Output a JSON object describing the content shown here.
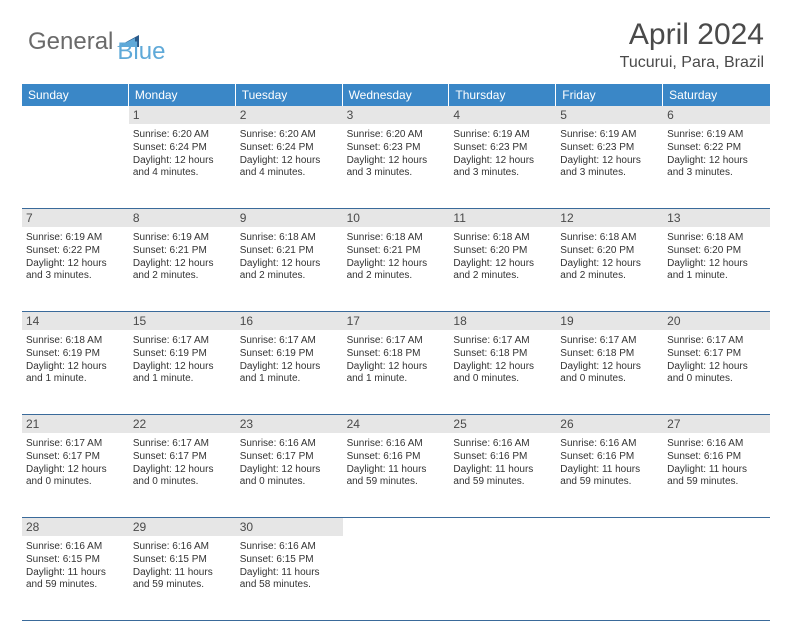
{
  "logo": {
    "general": "General",
    "blue": "Blue"
  },
  "title": "April 2024",
  "location": "Tucurui, Para, Brazil",
  "day_headers": [
    "Sunday",
    "Monday",
    "Tuesday",
    "Wednesday",
    "Thursday",
    "Friday",
    "Saturday"
  ],
  "colors": {
    "header_bg": "#3a87c7",
    "header_text": "#ffffff",
    "number_bg": "#e6e6e6",
    "row_border": "#3a6a9a",
    "logo_gray": "#6a6a6a",
    "logo_blue": "#5fa9d8"
  },
  "weeks": [
    [
      {
        "num": "",
        "sunrise": "",
        "sunset": "",
        "daylight": ""
      },
      {
        "num": "1",
        "sunrise": "Sunrise: 6:20 AM",
        "sunset": "Sunset: 6:24 PM",
        "daylight": "Daylight: 12 hours and 4 minutes."
      },
      {
        "num": "2",
        "sunrise": "Sunrise: 6:20 AM",
        "sunset": "Sunset: 6:24 PM",
        "daylight": "Daylight: 12 hours and 4 minutes."
      },
      {
        "num": "3",
        "sunrise": "Sunrise: 6:20 AM",
        "sunset": "Sunset: 6:23 PM",
        "daylight": "Daylight: 12 hours and 3 minutes."
      },
      {
        "num": "4",
        "sunrise": "Sunrise: 6:19 AM",
        "sunset": "Sunset: 6:23 PM",
        "daylight": "Daylight: 12 hours and 3 minutes."
      },
      {
        "num": "5",
        "sunrise": "Sunrise: 6:19 AM",
        "sunset": "Sunset: 6:23 PM",
        "daylight": "Daylight: 12 hours and 3 minutes."
      },
      {
        "num": "6",
        "sunrise": "Sunrise: 6:19 AM",
        "sunset": "Sunset: 6:22 PM",
        "daylight": "Daylight: 12 hours and 3 minutes."
      }
    ],
    [
      {
        "num": "7",
        "sunrise": "Sunrise: 6:19 AM",
        "sunset": "Sunset: 6:22 PM",
        "daylight": "Daylight: 12 hours and 3 minutes."
      },
      {
        "num": "8",
        "sunrise": "Sunrise: 6:19 AM",
        "sunset": "Sunset: 6:21 PM",
        "daylight": "Daylight: 12 hours and 2 minutes."
      },
      {
        "num": "9",
        "sunrise": "Sunrise: 6:18 AM",
        "sunset": "Sunset: 6:21 PM",
        "daylight": "Daylight: 12 hours and 2 minutes."
      },
      {
        "num": "10",
        "sunrise": "Sunrise: 6:18 AM",
        "sunset": "Sunset: 6:21 PM",
        "daylight": "Daylight: 12 hours and 2 minutes."
      },
      {
        "num": "11",
        "sunrise": "Sunrise: 6:18 AM",
        "sunset": "Sunset: 6:20 PM",
        "daylight": "Daylight: 12 hours and 2 minutes."
      },
      {
        "num": "12",
        "sunrise": "Sunrise: 6:18 AM",
        "sunset": "Sunset: 6:20 PM",
        "daylight": "Daylight: 12 hours and 2 minutes."
      },
      {
        "num": "13",
        "sunrise": "Sunrise: 6:18 AM",
        "sunset": "Sunset: 6:20 PM",
        "daylight": "Daylight: 12 hours and 1 minute."
      }
    ],
    [
      {
        "num": "14",
        "sunrise": "Sunrise: 6:18 AM",
        "sunset": "Sunset: 6:19 PM",
        "daylight": "Daylight: 12 hours and 1 minute."
      },
      {
        "num": "15",
        "sunrise": "Sunrise: 6:17 AM",
        "sunset": "Sunset: 6:19 PM",
        "daylight": "Daylight: 12 hours and 1 minute."
      },
      {
        "num": "16",
        "sunrise": "Sunrise: 6:17 AM",
        "sunset": "Sunset: 6:19 PM",
        "daylight": "Daylight: 12 hours and 1 minute."
      },
      {
        "num": "17",
        "sunrise": "Sunrise: 6:17 AM",
        "sunset": "Sunset: 6:18 PM",
        "daylight": "Daylight: 12 hours and 1 minute."
      },
      {
        "num": "18",
        "sunrise": "Sunrise: 6:17 AM",
        "sunset": "Sunset: 6:18 PM",
        "daylight": "Daylight: 12 hours and 0 minutes."
      },
      {
        "num": "19",
        "sunrise": "Sunrise: 6:17 AM",
        "sunset": "Sunset: 6:18 PM",
        "daylight": "Daylight: 12 hours and 0 minutes."
      },
      {
        "num": "20",
        "sunrise": "Sunrise: 6:17 AM",
        "sunset": "Sunset: 6:17 PM",
        "daylight": "Daylight: 12 hours and 0 minutes."
      }
    ],
    [
      {
        "num": "21",
        "sunrise": "Sunrise: 6:17 AM",
        "sunset": "Sunset: 6:17 PM",
        "daylight": "Daylight: 12 hours and 0 minutes."
      },
      {
        "num": "22",
        "sunrise": "Sunrise: 6:17 AM",
        "sunset": "Sunset: 6:17 PM",
        "daylight": "Daylight: 12 hours and 0 minutes."
      },
      {
        "num": "23",
        "sunrise": "Sunrise: 6:16 AM",
        "sunset": "Sunset: 6:17 PM",
        "daylight": "Daylight: 12 hours and 0 minutes."
      },
      {
        "num": "24",
        "sunrise": "Sunrise: 6:16 AM",
        "sunset": "Sunset: 6:16 PM",
        "daylight": "Daylight: 11 hours and 59 minutes."
      },
      {
        "num": "25",
        "sunrise": "Sunrise: 6:16 AM",
        "sunset": "Sunset: 6:16 PM",
        "daylight": "Daylight: 11 hours and 59 minutes."
      },
      {
        "num": "26",
        "sunrise": "Sunrise: 6:16 AM",
        "sunset": "Sunset: 6:16 PM",
        "daylight": "Daylight: 11 hours and 59 minutes."
      },
      {
        "num": "27",
        "sunrise": "Sunrise: 6:16 AM",
        "sunset": "Sunset: 6:16 PM",
        "daylight": "Daylight: 11 hours and 59 minutes."
      }
    ],
    [
      {
        "num": "28",
        "sunrise": "Sunrise: 6:16 AM",
        "sunset": "Sunset: 6:15 PM",
        "daylight": "Daylight: 11 hours and 59 minutes."
      },
      {
        "num": "29",
        "sunrise": "Sunrise: 6:16 AM",
        "sunset": "Sunset: 6:15 PM",
        "daylight": "Daylight: 11 hours and 59 minutes."
      },
      {
        "num": "30",
        "sunrise": "Sunrise: 6:16 AM",
        "sunset": "Sunset: 6:15 PM",
        "daylight": "Daylight: 11 hours and 58 minutes."
      },
      {
        "num": "",
        "sunrise": "",
        "sunset": "",
        "daylight": ""
      },
      {
        "num": "",
        "sunrise": "",
        "sunset": "",
        "daylight": ""
      },
      {
        "num": "",
        "sunrise": "",
        "sunset": "",
        "daylight": ""
      },
      {
        "num": "",
        "sunrise": "",
        "sunset": "",
        "daylight": ""
      }
    ]
  ]
}
